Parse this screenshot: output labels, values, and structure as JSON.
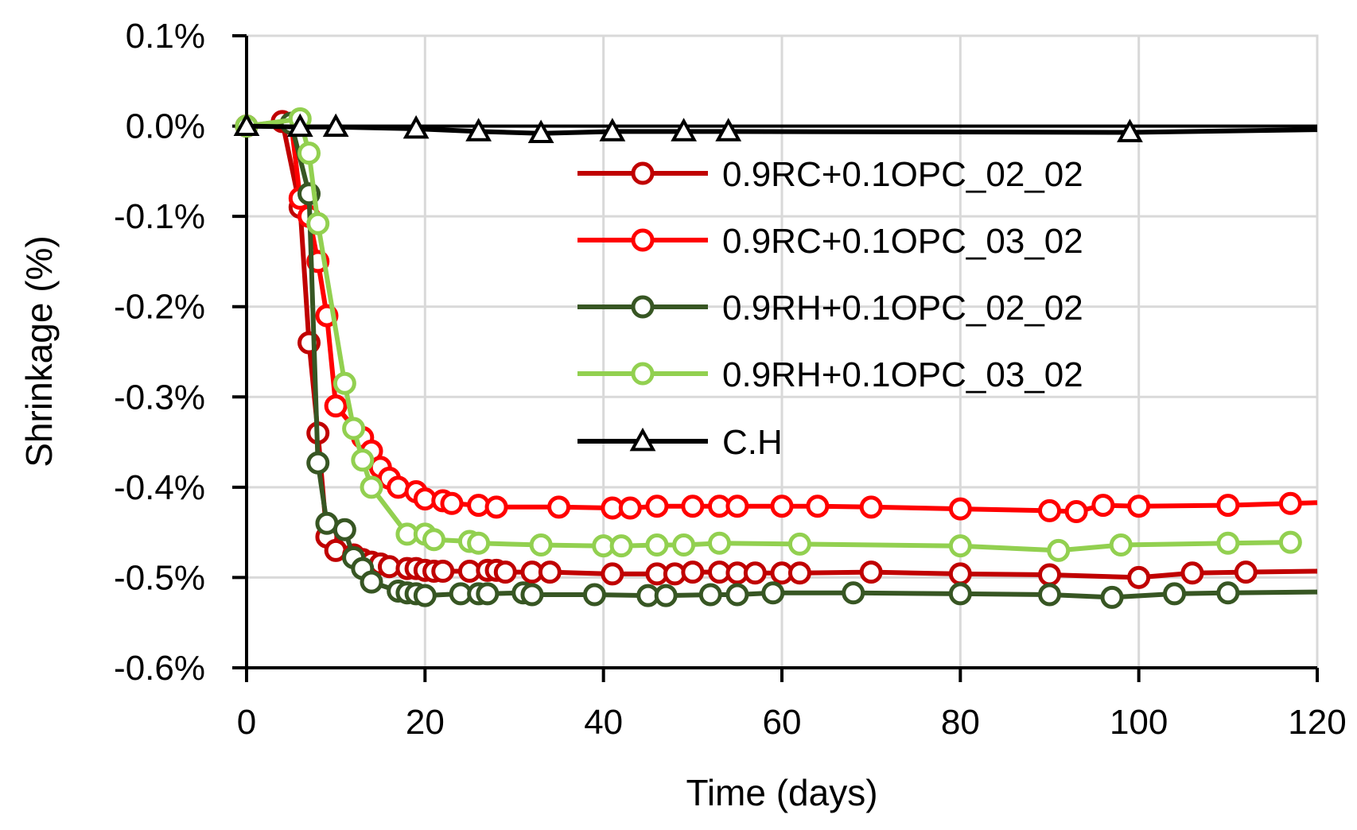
{
  "chart_data": {
    "type": "line",
    "title": "",
    "xlabel": "Time (days)",
    "ylabel": "Shrinkage (%)",
    "xlim": [
      0,
      120
    ],
    "ylim": [
      -0.6,
      0.1
    ],
    "xticks": [
      0,
      20,
      40,
      60,
      80,
      100,
      120
    ],
    "yticks": [
      0.1,
      0.0,
      -0.1,
      -0.2,
      -0.3,
      -0.4,
      -0.5,
      -0.6
    ],
    "xtick_labels": [
      "0",
      "20",
      "40",
      "60",
      "80",
      "100",
      "120"
    ],
    "ytick_labels": [
      "0.1%",
      "0.0%",
      "-0.1%",
      "-0.2%",
      "-0.3%",
      "-0.4%",
      "-0.5%",
      "-0.6%"
    ],
    "grid": true,
    "legend_position": "center-right",
    "series": [
      {
        "name": "0.9RC+0.1OPC_02_02",
        "color": "#C00000",
        "marker": "circle",
        "x": [
          0,
          4,
          6,
          7,
          8,
          9,
          10,
          12,
          13,
          14,
          15,
          16,
          18,
          19,
          20,
          21,
          22,
          25,
          27,
          28,
          29,
          32,
          34,
          41,
          46,
          48,
          50,
          53,
          55,
          57,
          60,
          62,
          70,
          80,
          90,
          100,
          106,
          112,
          120
        ],
        "y": [
          0.0,
          0.005,
          -0.09,
          -0.24,
          -0.34,
          -0.455,
          -0.47,
          -0.475,
          -0.48,
          -0.483,
          -0.485,
          -0.488,
          -0.49,
          -0.49,
          -0.492,
          -0.493,
          -0.493,
          -0.493,
          -0.492,
          -0.492,
          -0.494,
          -0.494,
          -0.494,
          -0.496,
          -0.496,
          -0.496,
          -0.494,
          -0.494,
          -0.495,
          -0.495,
          -0.495,
          -0.495,
          -0.494,
          -0.496,
          -0.497,
          -0.5,
          -0.495,
          -0.494,
          -0.493
        ]
      },
      {
        "name": "0.9RC+0.1OPC_03_02",
        "color": "#FF0000",
        "marker": "circle",
        "x": [
          0,
          5,
          6,
          7,
          8,
          9,
          10,
          13,
          14,
          15,
          16,
          17,
          19,
          20,
          22,
          23,
          26,
          28,
          35,
          41,
          43,
          46,
          50,
          53,
          55,
          60,
          64,
          70,
          80,
          90,
          93,
          96,
          100,
          110,
          117,
          120
        ],
        "y": [
          0.0,
          0.003,
          -0.08,
          -0.1,
          -0.15,
          -0.21,
          -0.31,
          -0.345,
          -0.36,
          -0.378,
          -0.39,
          -0.4,
          -0.405,
          -0.413,
          -0.415,
          -0.418,
          -0.42,
          -0.422,
          -0.422,
          -0.423,
          -0.423,
          -0.421,
          -0.421,
          -0.421,
          -0.421,
          -0.421,
          -0.421,
          -0.422,
          -0.424,
          -0.426,
          -0.427,
          -0.42,
          -0.421,
          -0.42,
          -0.418,
          -0.417
        ]
      },
      {
        "name": "0.9RH+0.1OPC_02_02",
        "color": "#375623",
        "marker": "circle",
        "x": [
          0,
          5,
          7,
          8,
          9,
          11,
          12,
          13,
          14,
          17,
          18,
          19,
          20,
          24,
          26,
          27,
          31,
          32,
          39,
          45,
          47,
          52,
          55,
          59,
          68,
          80,
          90,
          97,
          104,
          110,
          120
        ],
        "y": [
          0.0,
          0.003,
          -0.075,
          -0.373,
          -0.44,
          -0.447,
          -0.478,
          -0.49,
          -0.505,
          -0.515,
          -0.517,
          -0.518,
          -0.52,
          -0.518,
          -0.518,
          -0.518,
          -0.517,
          -0.519,
          -0.519,
          -0.52,
          -0.52,
          -0.519,
          -0.519,
          -0.517,
          -0.517,
          -0.518,
          -0.519,
          -0.522,
          -0.518,
          -0.517,
          -0.516
        ]
      },
      {
        "name": "0.9RH+0.1OPC_03_02",
        "color": "#92D050",
        "marker": "circle",
        "x": [
          0,
          6,
          7,
          8,
          11,
          12,
          13,
          14,
          18,
          20,
          21,
          25,
          26,
          33,
          40,
          42,
          46,
          49,
          53,
          62,
          80,
          91,
          98,
          110,
          117
        ],
        "y": [
          0.0,
          0.008,
          -0.03,
          -0.108,
          -0.285,
          -0.335,
          -0.37,
          -0.4,
          -0.452,
          -0.452,
          -0.458,
          -0.46,
          -0.462,
          -0.464,
          -0.465,
          -0.465,
          -0.464,
          -0.464,
          -0.462,
          -0.463,
          -0.465,
          -0.47,
          -0.464,
          -0.462,
          -0.461
        ]
      },
      {
        "name": "C.H",
        "color": "#000000",
        "marker": "triangle",
        "x": [
          0,
          6,
          10,
          19,
          26,
          33,
          41,
          49,
          54,
          99,
          120
        ],
        "y": [
          0.0,
          -0.001,
          -0.001,
          -0.003,
          -0.006,
          -0.008,
          -0.006,
          -0.006,
          -0.006,
          -0.007,
          -0.004
        ]
      }
    ]
  }
}
